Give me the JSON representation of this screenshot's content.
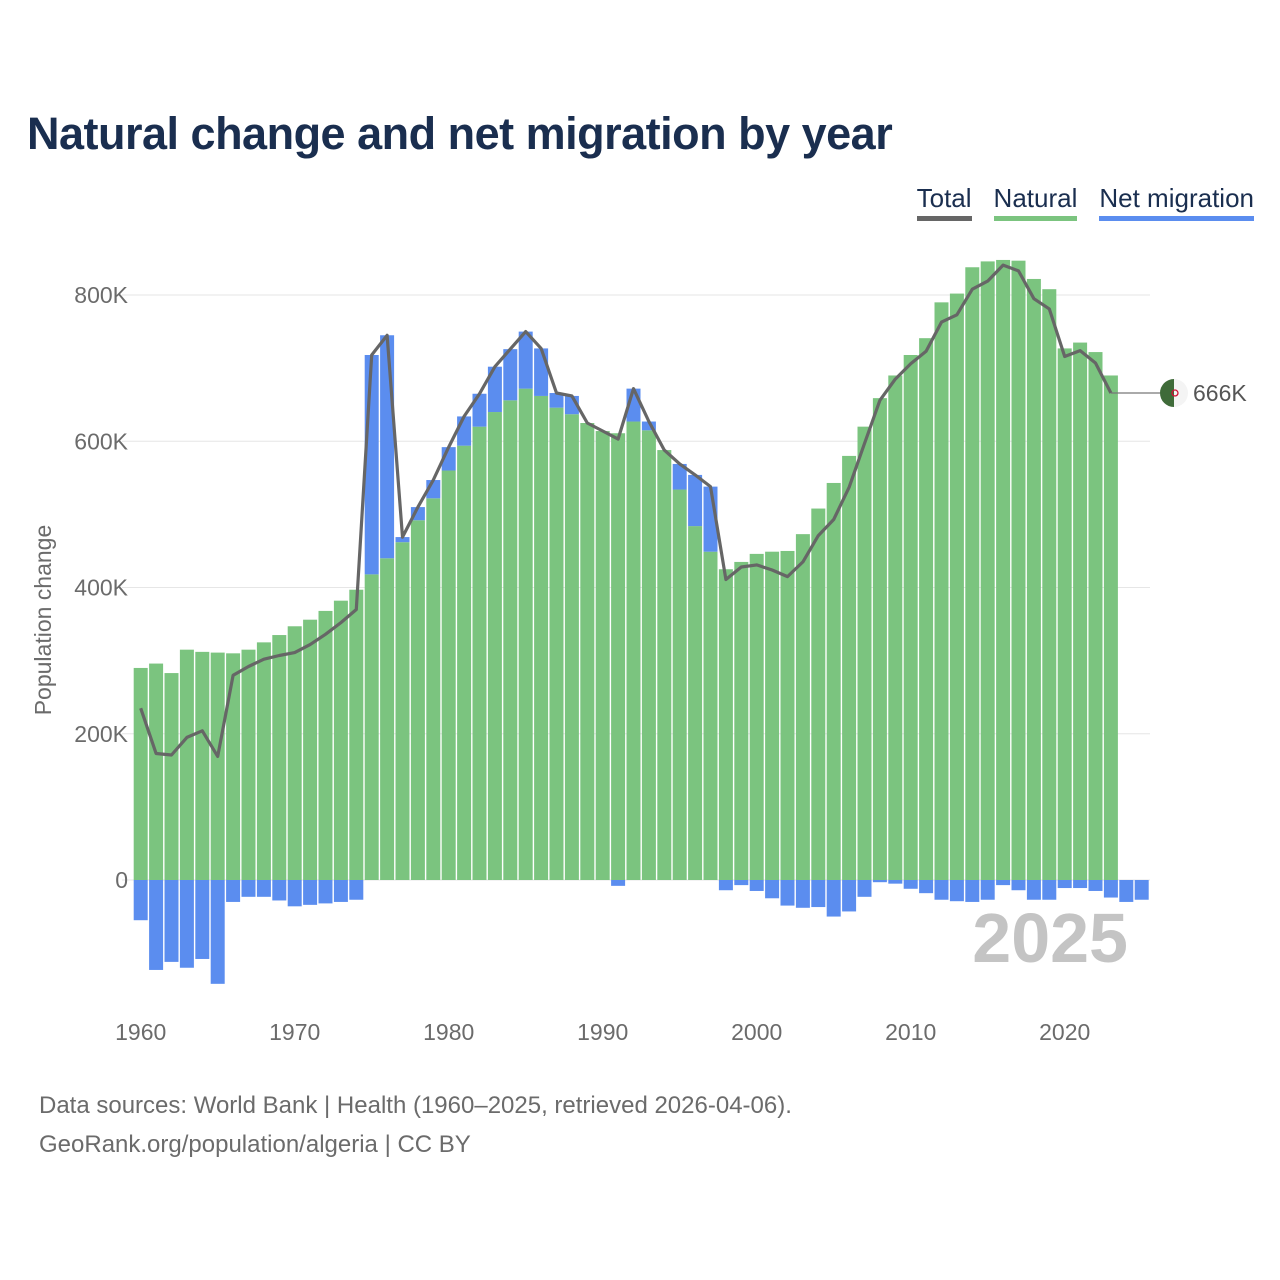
{
  "title": "Natural change and net migration by year",
  "legend": {
    "total": {
      "label": "Total",
      "color": "#666666"
    },
    "natural": {
      "label": "Natural",
      "color": "#7bc47f"
    },
    "migration": {
      "label": "Net migration",
      "color": "#5b8def"
    }
  },
  "footer": {
    "line1": "Data sources: World Bank | Health (1960–2025, retrieved 2026-04-06).",
    "line2": "GeoRank.org/population/algeria | CC BY"
  },
  "chart_data": {
    "type": "bar",
    "stacked": true,
    "title": "Natural change and net migration by year",
    "xlabel": "",
    "ylabel": "Population change",
    "xlim": [
      1960,
      2025
    ],
    "ylim": [
      -180000,
      900000
    ],
    "yticks": [
      0,
      200000,
      400000,
      600000,
      800000
    ],
    "ytick_labels": [
      "0",
      "200K",
      "400K",
      "600K",
      "800K"
    ],
    "xticks": [
      1960,
      1970,
      1980,
      1990,
      2000,
      2010,
      2020
    ],
    "xtick_labels": [
      "1960",
      "1970",
      "1980",
      "1990",
      "2000",
      "2010",
      "2020"
    ],
    "year_label": "2025",
    "end_value_label": "666K",
    "end_marker": "algeria-flag",
    "grid": true,
    "legend_position": "top-right",
    "years": [
      1960,
      1961,
      1962,
      1963,
      1964,
      1965,
      1966,
      1967,
      1968,
      1969,
      1970,
      1971,
      1972,
      1973,
      1974,
      1975,
      1976,
      1977,
      1978,
      1979,
      1980,
      1981,
      1982,
      1983,
      1984,
      1985,
      1986,
      1987,
      1988,
      1989,
      1990,
      1991,
      1992,
      1993,
      1994,
      1995,
      1996,
      1997,
      1998,
      1999,
      2000,
      2001,
      2002,
      2003,
      2004,
      2005,
      2006,
      2007,
      2008,
      2009,
      2010,
      2011,
      2012,
      2013,
      2014,
      2015,
      2016,
      2017,
      2018,
      2019,
      2020,
      2021,
      2022,
      2023,
      2024,
      2025
    ],
    "series": [
      {
        "name": "Natural",
        "values": [
          290000,
          296000,
          283000,
          315000,
          312000,
          311000,
          310000,
          315000,
          325000,
          335000,
          347000,
          356000,
          368000,
          382000,
          397000,
          418000,
          440000,
          462000,
          492000,
          522000,
          560000,
          594000,
          620000,
          640000,
          656000,
          672000,
          662000,
          646000,
          637000,
          625000,
          614000,
          611000,
          627000,
          615000,
          588000,
          534000,
          484000,
          449000,
          425000,
          435000,
          446000,
          449000,
          450000,
          473000,
          508000,
          543000,
          580000,
          620000,
          659000,
          690000,
          718000,
          741000,
          790000,
          802000,
          838000,
          846000,
          848000,
          847000,
          822000,
          808000,
          727000,
          735000,
          722000,
          690000,
          null,
          null
        ]
      },
      {
        "name": "Net migration",
        "values": [
          -55000,
          -123000,
          -112000,
          -120000,
          -108000,
          -142000,
          -30000,
          -23000,
          -23000,
          -28000,
          -36000,
          -34000,
          -32000,
          -30000,
          -27000,
          300000,
          305000,
          7000,
          18000,
          25000,
          32000,
          40000,
          45000,
          62000,
          70000,
          78000,
          65000,
          20000,
          25000,
          0,
          0,
          -8000,
          45000,
          12000,
          0,
          35000,
          70000,
          89000,
          -14000,
          -7000,
          -15000,
          -25000,
          -35000,
          -38000,
          -37000,
          -50000,
          -43000,
          -23000,
          -3000,
          -5000,
          -12000,
          -18000,
          -27000,
          -29000,
          -30000,
          -27000,
          -7000,
          -14000,
          -27000,
          -27000,
          -11000,
          -11000,
          -15000,
          -24000,
          -30000,
          -27000
        ]
      },
      {
        "name": "Total",
        "values": [
          235000,
          173000,
          171000,
          195000,
          204000,
          169000,
          280000,
          292000,
          302000,
          307000,
          311000,
          322000,
          336000,
          352000,
          370000,
          718000,
          745000,
          469000,
          510000,
          547000,
          592000,
          634000,
          665000,
          702000,
          726000,
          750000,
          727000,
          666000,
          662000,
          625000,
          614000,
          603000,
          672000,
          627000,
          588000,
          569000,
          554000,
          538000,
          411000,
          428000,
          431000,
          424000,
          415000,
          435000,
          471000,
          493000,
          537000,
          597000,
          656000,
          685000,
          706000,
          723000,
          763000,
          773000,
          808000,
          819000,
          841000,
          833000,
          795000,
          781000,
          716000,
          724000,
          707000,
          666000,
          null,
          null
        ]
      }
    ]
  }
}
